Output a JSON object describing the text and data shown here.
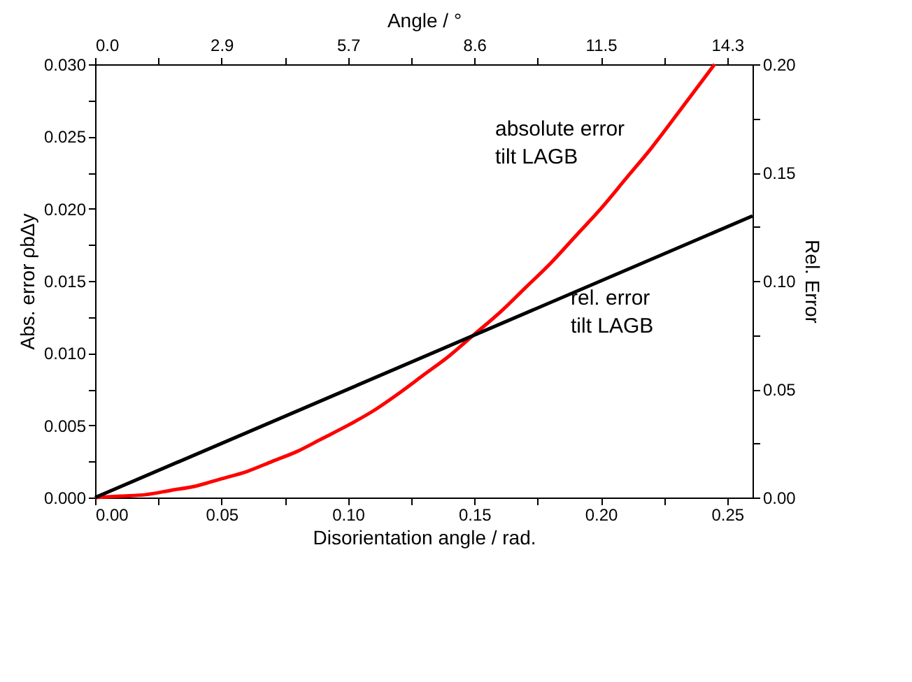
{
  "chart_data": {
    "type": "line",
    "xlabel": "Disorientation angle / rad.",
    "ylabel": "Abs. error ρbΔy",
    "y2label": "Rel. Error",
    "x2label": "Angle / °",
    "x": [
      0,
      0.01,
      0.02,
      0.03,
      0.04,
      0.05,
      0.06,
      0.07,
      0.08,
      0.09,
      0.1,
      0.11,
      0.12,
      0.13,
      0.14,
      0.15,
      0.16,
      0.17,
      0.18,
      0.19,
      0.2,
      0.21,
      0.22,
      0.23,
      0.245
    ],
    "series": [
      {
        "color": "#ff0000",
        "values": [
          0,
          0.0001,
          0.0002,
          0.0005,
          0.0008,
          0.0013,
          0.0018,
          0.0025,
          0.0032,
          0.0041,
          0.005,
          0.006,
          0.0072,
          0.0085,
          0.0098,
          0.0113,
          0.0128,
          0.0145,
          0.0162,
          0.0181,
          0.02,
          0.0221,
          0.0242,
          0.0265,
          0.03
        ]
      },
      {
        "color": "#000000",
        "axis": "y2",
        "x": [
          0,
          0.26
        ],
        "values": [
          0,
          0.13
        ]
      }
    ],
    "xlim": [
      0,
      0.26
    ],
    "xticks": [
      {
        "value": 0,
        "label": "0.00"
      },
      {
        "value": 0.025,
        "label": null
      },
      {
        "value": 0.05,
        "label": "0.05"
      },
      {
        "value": 0.075,
        "label": null
      },
      {
        "value": 0.1,
        "label": "0.10"
      },
      {
        "value": 0.125,
        "label": null
      },
      {
        "value": 0.15,
        "label": "0.15"
      },
      {
        "value": 0.175,
        "label": null
      },
      {
        "value": 0.2,
        "label": "0.20"
      },
      {
        "value": 0.225,
        "label": null
      },
      {
        "value": 0.25,
        "label": "0.25"
      }
    ],
    "x2lim": [
      0,
      14.897
    ],
    "x2ticks": [
      {
        "value": 0,
        "label": "0.0"
      },
      {
        "value": 1.432,
        "label": null
      },
      {
        "value": 2.865,
        "label": "2.9"
      },
      {
        "value": 4.297,
        "label": null
      },
      {
        "value": 5.73,
        "label": "5.7"
      },
      {
        "value": 7.162,
        "label": null
      },
      {
        "value": 8.594,
        "label": "8.6"
      },
      {
        "value": 10.027,
        "label": null
      },
      {
        "value": 11.459,
        "label": "11.5"
      },
      {
        "value": 12.892,
        "label": null
      },
      {
        "value": 14.324,
        "label": "14.3"
      }
    ],
    "ylim": [
      0,
      0.03
    ],
    "yticks": [
      {
        "value": 0,
        "label": "0.000"
      },
      {
        "value": 0.0025,
        "label": null
      },
      0.005,
      {
        "value": 0.0075,
        "label": null
      },
      {
        "value": 0.01,
        "label": "0.010"
      },
      {
        "value": 0.0125,
        "label": null
      },
      0.015,
      {
        "value": 0.0175,
        "label": null
      },
      {
        "value": 0.02,
        "label": "0.020"
      },
      {
        "value": 0.0225,
        "label": null
      },
      0.025,
      {
        "value": 0.0275,
        "label": null
      },
      {
        "value": 0.03,
        "label": "0.030"
      }
    ],
    "y2lim": [
      0,
      0.2
    ],
    "y2ticks": [
      {
        "value": 0,
        "label": "0.00"
      },
      {
        "value": 0.025,
        "label": null
      },
      0.05,
      {
        "value": 0.075,
        "label": null
      },
      {
        "value": 0.1,
        "label": "0.10"
      },
      {
        "value": 0.125,
        "label": null
      },
      0.15,
      {
        "value": 0.175,
        "label": null
      },
      {
        "value": 0.2,
        "label": "0.20"
      }
    ],
    "annotations": [
      "absolute error\ntilt LAGB",
      "rel. error\ntilt LAGB"
    ],
    "grid": false,
    "line_style": "solid",
    "marker": "none"
  }
}
